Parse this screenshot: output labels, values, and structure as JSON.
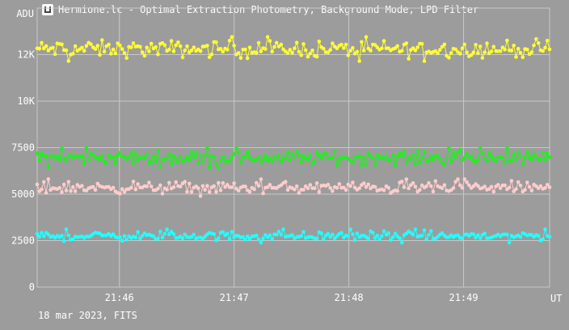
{
  "window": {
    "title": "Hermione.lc - Optimal Extraction Photometry, Background Mode, LPD Filter"
  },
  "footer": {
    "text": "18 mar 2023, FITS"
  },
  "colors": {
    "background": "#9c9c9c",
    "grid": "#c8c8c8"
  },
  "chart_data": {
    "type": "line",
    "ylabel": "ADU",
    "xlabel": "UT",
    "ylim": [
      0,
      15000
    ],
    "xlim": [
      "21:45:17",
      "21:49:45"
    ],
    "yticks": [
      {
        "value": 0,
        "label": "0"
      },
      {
        "value": 2500,
        "label": "2500"
      },
      {
        "value": 5000,
        "label": "5000"
      },
      {
        "value": 7500,
        "label": "7500"
      },
      {
        "value": 10000,
        "label": "10K"
      },
      {
        "value": 12500,
        "label": "12K"
      }
    ],
    "xticks": [
      {
        "value": "21:46:00",
        "label": "21:46"
      },
      {
        "value": "21:47:00",
        "label": "21:47"
      },
      {
        "value": "21:48:00",
        "label": "21:48"
      },
      {
        "value": "21:49:00",
        "label": "21:49"
      }
    ],
    "grid": true,
    "legend": "none",
    "series": [
      {
        "color": "#ffff33",
        "mean": 12800,
        "noise": 270,
        "min": 12000,
        "max": 14100
      },
      {
        "color": "#22ee22",
        "mean": 6950,
        "noise": 220,
        "min": 6300,
        "max": 7650
      },
      {
        "color": "#ffcccc",
        "mean": 5350,
        "noise": 190,
        "min": 4800,
        "max": 6050
      },
      {
        "color": "#22ffff",
        "mean": 2750,
        "noise": 150,
        "min": 2050,
        "max": 3300
      }
    ]
  }
}
